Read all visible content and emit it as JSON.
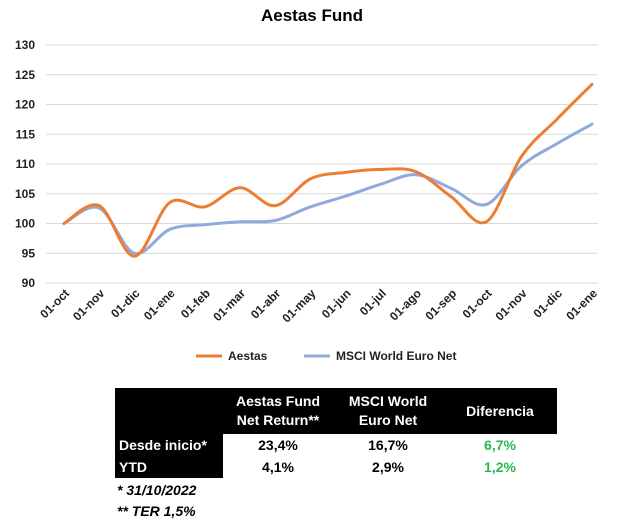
{
  "chart_data": {
    "type": "line",
    "title": "Aestas Fund",
    "xlabel": "",
    "ylabel": "",
    "x": [
      "01-oct",
      "01-nov",
      "01-dic",
      "01-ene",
      "01-feb",
      "01-mar",
      "01-abr",
      "01-may",
      "01-jun",
      "01-jul",
      "01-ago",
      "01-sep",
      "01-oct",
      "01-nov",
      "01-dic",
      "01-ene"
    ],
    "ylim": [
      90,
      130
    ],
    "yticks": [
      90,
      95,
      100,
      105,
      110,
      115,
      120,
      125,
      130
    ],
    "grid": "horizontal",
    "legend_position": "bottom",
    "series": [
      {
        "name": "Aestas",
        "color": "#ed7d31",
        "values": [
          100,
          103,
          94.5,
          103.5,
          102.8,
          106,
          103,
          107.5,
          108.6,
          109.1,
          108.7,
          104.5,
          100.3,
          111.3,
          117.5,
          123.4
        ]
      },
      {
        "name": "MSCI World Euro Net",
        "color": "#8faadc",
        "values": [
          100,
          102.6,
          95,
          99,
          99.8,
          100.3,
          100.5,
          102.8,
          104.6,
          106.6,
          108.2,
          105.9,
          103.2,
          109.7,
          113.4,
          116.7
        ]
      }
    ]
  },
  "table": {
    "headers": [
      "",
      "Aestas Fund Net Return**",
      "MSCI World Euro Net",
      "Diferencia"
    ],
    "header_lines": [
      [
        "",
        ""
      ],
      [
        "Aestas Fund",
        "Net Return**"
      ],
      [
        "MSCI World",
        "Euro Net"
      ],
      [
        "Diferencia",
        ""
      ]
    ],
    "rows": [
      {
        "label": "Desde inicio*",
        "fund": "23,4%",
        "msci": "16,7%",
        "diff": "6,7%"
      },
      {
        "label": "YTD",
        "fund": "4,1%",
        "msci": "2,9%",
        "diff": "1,2%"
      }
    ],
    "diff_color": "#2db84d"
  },
  "footnotes": [
    "* 31/10/2022",
    "** TER 1,5%"
  ]
}
